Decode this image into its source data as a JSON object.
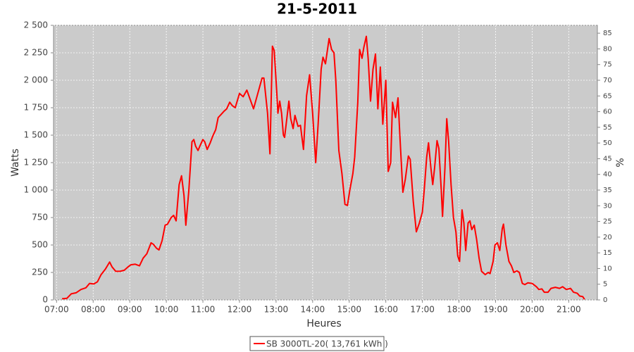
{
  "chart_data": {
    "type": "line",
    "title": "21-5-2011",
    "xlabel": "Heures",
    "ylabel": "Watts",
    "y2label": "%",
    "x": [
      "07:09",
      "07:17",
      "07:24",
      "07:32",
      "07:40",
      "07:48",
      "07:54",
      "08:01",
      "08:07",
      "08:13",
      "08:20",
      "08:27",
      "08:31",
      "08:37",
      "08:44",
      "08:51",
      "08:57",
      "09:02",
      "09:09",
      "09:16",
      "09:22",
      "09:28",
      "09:35",
      "09:39",
      "09:44",
      "09:48",
      "09:53",
      "09:58",
      "10:02",
      "10:08",
      "10:12",
      "10:16",
      "10:21",
      "10:25",
      "10:29",
      "10:32",
      "10:37",
      "10:42",
      "10:45",
      "10:48",
      "10:52",
      "10:55",
      "11:00",
      "11:03",
      "11:07",
      "11:12",
      "11:16",
      "11:21",
      "11:25",
      "11:30",
      "11:35",
      "11:39",
      "11:44",
      "11:48",
      "11:53",
      "12:00",
      "12:06",
      "12:12",
      "12:23",
      "12:37",
      "12:40",
      "12:46",
      "12:50",
      "12:54",
      "12:57",
      "13:01",
      "13:03",
      "13:06",
      "13:09",
      "13:12",
      "13:14",
      "13:21",
      "13:24",
      "13:28",
      "13:31",
      "13:36",
      "13:40",
      "13:45",
      "13:50",
      "13:55",
      "14:00",
      "14:05",
      "14:09",
      "14:14",
      "14:17",
      "14:21",
      "14:27",
      "14:31",
      "14:35",
      "14:38",
      "14:43",
      "14:48",
      "14:53",
      "14:57",
      "15:01",
      "15:06",
      "15:09",
      "15:14",
      "15:17",
      "15:21",
      "15:24",
      "15:28",
      "15:31",
      "15:35",
      "15:39",
      "15:43",
      "15:47",
      "15:51",
      "15:55",
      "16:00",
      "16:04",
      "16:08",
      "16:11",
      "16:16",
      "16:20",
      "16:23",
      "16:28",
      "16:32",
      "16:37",
      "16:40",
      "16:45",
      "16:50",
      "16:55",
      "17:00",
      "17:03",
      "17:07",
      "17:10",
      "17:14",
      "17:17",
      "17:20",
      "17:24",
      "17:27",
      "17:31",
      "17:33",
      "17:37",
      "17:40",
      "17:43",
      "17:47",
      "17:51",
      "17:55",
      "17:58",
      "18:01",
      "18:05",
      "18:08",
      "18:11",
      "18:15",
      "18:18",
      "18:21",
      "18:25",
      "18:29",
      "18:33",
      "18:37",
      "18:43",
      "18:48",
      "18:51",
      "18:56",
      "18:59",
      "19:03",
      "19:07",
      "19:11",
      "19:13",
      "19:17",
      "19:22",
      "19:26",
      "19:30",
      "19:35",
      "19:39",
      "19:44",
      "19:48",
      "19:53",
      "20:00",
      "20:07",
      "20:11",
      "20:16",
      "20:20",
      "20:26",
      "20:31",
      "20:38",
      "20:45",
      "20:50",
      "20:56",
      "21:03",
      "21:08",
      "21:14",
      "21:18",
      "21:23",
      "21:26"
    ],
    "series": [
      {
        "name": "SB 3000TL-20( 13,761 kWh )",
        "color": "#ff0000",
        "values": [
          10,
          15,
          55,
          65,
          95,
          110,
          150,
          145,
          165,
          230,
          280,
          345,
          300,
          260,
          260,
          270,
          300,
          320,
          325,
          310,
          380,
          420,
          520,
          505,
          470,
          455,
          540,
          680,
          690,
          750,
          770,
          720,
          1050,
          1130,
          950,
          680,
          1000,
          1440,
          1460,
          1400,
          1360,
          1400,
          1460,
          1440,
          1370,
          1430,
          1490,
          1550,
          1660,
          1690,
          1720,
          1740,
          1800,
          1770,
          1750,
          1880,
          1850,
          1910,
          1740,
          2020,
          2020,
          1700,
          1330,
          2310,
          2270,
          1900,
          1700,
          1810,
          1700,
          1500,
          1480,
          1810,
          1650,
          1560,
          1680,
          1580,
          1590,
          1370,
          1860,
          2050,
          1700,
          1250,
          1600,
          2100,
          2210,
          2150,
          2380,
          2280,
          2250,
          2000,
          1360,
          1150,
          870,
          860,
          1000,
          1150,
          1300,
          1800,
          2280,
          2200,
          2300,
          2400,
          2200,
          1810,
          2100,
          2240,
          1740,
          2120,
          1600,
          2000,
          1170,
          1250,
          1800,
          1660,
          1840,
          1500,
          980,
          1100,
          1310,
          1280,
          900,
          620,
          700,
          800,
          1000,
          1300,
          1430,
          1200,
          1050,
          1200,
          1450,
          1380,
          1000,
          760,
          1200,
          1650,
          1450,
          1050,
          750,
          620,
          400,
          350,
          820,
          700,
          450,
          700,
          720,
          640,
          680,
          550,
          380,
          260,
          230,
          250,
          240,
          350,
          500,
          520,
          450,
          650,
          690,
          500,
          350,
          310,
          250,
          265,
          250,
          150,
          140,
          155,
          150,
          120,
          95,
          100,
          70,
          70,
          105,
          115,
          105,
          120,
          95,
          105,
          70,
          60,
          35,
          30,
          5
        ]
      }
    ],
    "xlim": [
      "06:55",
      "21:47"
    ],
    "xticks": [
      "07:00",
      "08:00",
      "09:00",
      "10:00",
      "11:00",
      "12:00",
      "13:00",
      "14:00",
      "15:00",
      "16:00",
      "17:00",
      "18:00",
      "19:00",
      "20:00",
      "21:00"
    ],
    "ylim": [
      0,
      2500
    ],
    "yticks": [
      0,
      250,
      500,
      750,
      {
        "value": 1000,
        "label": "1 000"
      },
      {
        "value": 1250,
        "label": "1 250"
      },
      {
        "value": 1500,
        "label": "1 500"
      },
      {
        "value": 1750,
        "label": "1 750"
      },
      {
        "value": 2000,
        "label": "2 000"
      },
      {
        "value": 2250,
        "label": "2 250"
      },
      {
        "value": 2500,
        "label": "2 500"
      }
    ],
    "y2lim": [
      0,
      87.5
    ],
    "y2ticks": [
      0,
      5,
      10,
      15,
      20,
      25,
      30,
      35,
      40,
      45,
      50,
      55,
      60,
      65,
      70,
      75,
      80,
      85
    ],
    "grid": true,
    "legend": "bottom"
  }
}
